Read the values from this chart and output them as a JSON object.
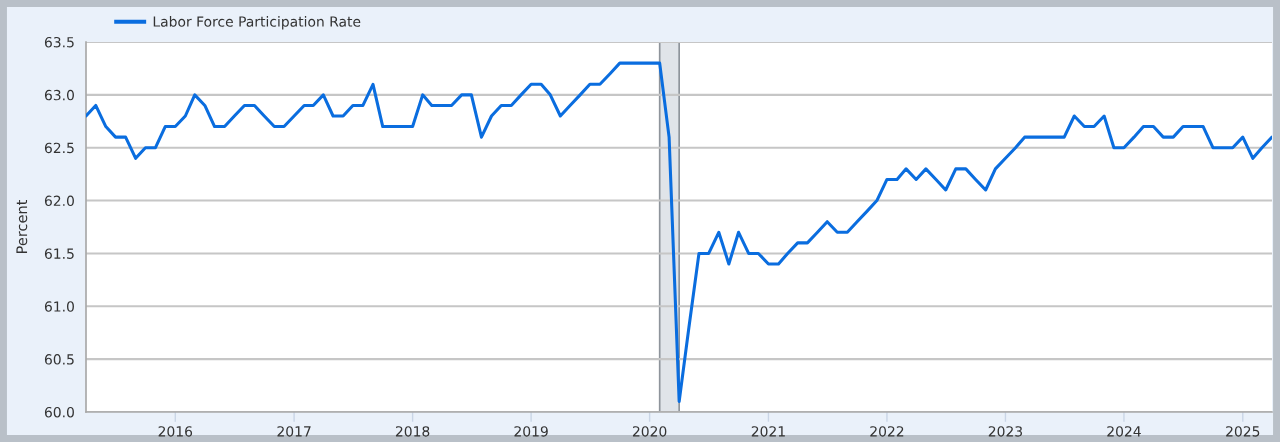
{
  "chart_data": {
    "type": "line",
    "ylabel": "Percent",
    "x": [
      "2015-04",
      "2015-05",
      "2015-06",
      "2015-07",
      "2015-08",
      "2015-09",
      "2015-10",
      "2015-11",
      "2015-12",
      "2016-01",
      "2016-02",
      "2016-03",
      "2016-04",
      "2016-05",
      "2016-06",
      "2016-07",
      "2016-08",
      "2016-09",
      "2016-10",
      "2016-11",
      "2016-12",
      "2017-01",
      "2017-02",
      "2017-03",
      "2017-04",
      "2017-05",
      "2017-06",
      "2017-07",
      "2017-08",
      "2017-09",
      "2017-10",
      "2017-11",
      "2017-12",
      "2018-01",
      "2018-02",
      "2018-03",
      "2018-04",
      "2018-05",
      "2018-06",
      "2018-07",
      "2018-08",
      "2018-09",
      "2018-10",
      "2018-11",
      "2018-12",
      "2019-01",
      "2019-02",
      "2019-03",
      "2019-04",
      "2019-05",
      "2019-06",
      "2019-07",
      "2019-08",
      "2019-09",
      "2019-10",
      "2019-11",
      "2019-12",
      "2020-01",
      "2020-02",
      "2020-03",
      "2020-04",
      "2020-05",
      "2020-06",
      "2020-07",
      "2020-08",
      "2020-09",
      "2020-10",
      "2020-11",
      "2020-12",
      "2021-01",
      "2021-02",
      "2021-03",
      "2021-04",
      "2021-05",
      "2021-06",
      "2021-07",
      "2021-08",
      "2021-09",
      "2021-10",
      "2021-11",
      "2021-12",
      "2022-01",
      "2022-02",
      "2022-03",
      "2022-04",
      "2022-05",
      "2022-06",
      "2022-07",
      "2022-08",
      "2022-09",
      "2022-10",
      "2022-11",
      "2022-12",
      "2023-01",
      "2023-02",
      "2023-03",
      "2023-04",
      "2023-05",
      "2023-06",
      "2023-07",
      "2023-08",
      "2023-09",
      "2023-10",
      "2023-11",
      "2023-12",
      "2024-01",
      "2024-02",
      "2024-03",
      "2024-04",
      "2024-05",
      "2024-06",
      "2024-07",
      "2024-08",
      "2024-09",
      "2024-10",
      "2024-11",
      "2024-12",
      "2025-01",
      "2025-02",
      "2025-03",
      "2025-04"
    ],
    "series": [
      {
        "name": "Labor Force Participation Rate",
        "color": "#0a6ddf",
        "values": [
          62.8,
          62.9,
          62.7,
          62.6,
          62.6,
          62.4,
          62.5,
          62.5,
          62.7,
          62.7,
          62.8,
          63.0,
          62.9,
          62.7,
          62.7,
          62.8,
          62.9,
          62.9,
          62.8,
          62.7,
          62.7,
          62.8,
          62.9,
          62.9,
          63.0,
          62.8,
          62.8,
          62.9,
          62.9,
          63.1,
          62.7,
          62.7,
          62.7,
          62.7,
          63.0,
          62.9,
          62.9,
          62.9,
          63.0,
          63.0,
          62.6,
          62.8,
          62.9,
          62.9,
          63.0,
          63.1,
          63.1,
          63.0,
          62.8,
          62.9,
          63.0,
          63.1,
          63.1,
          63.2,
          63.3,
          63.3,
          63.3,
          63.3,
          63.3,
          62.6,
          60.1,
          60.8,
          61.5,
          61.5,
          61.7,
          61.4,
          61.7,
          61.5,
          61.5,
          61.4,
          61.4,
          61.5,
          61.6,
          61.6,
          61.7,
          61.8,
          61.7,
          61.7,
          61.8,
          61.9,
          62.0,
          62.2,
          62.2,
          62.3,
          62.2,
          62.3,
          62.2,
          62.1,
          62.3,
          62.3,
          62.2,
          62.1,
          62.3,
          62.4,
          62.5,
          62.6,
          62.6,
          62.6,
          62.6,
          62.6,
          62.8,
          62.7,
          62.7,
          62.8,
          62.5,
          62.5,
          62.6,
          62.7,
          62.7,
          62.6,
          62.6,
          62.7,
          62.7,
          62.7,
          62.5,
          62.5,
          62.5,
          62.6,
          62.4,
          62.5,
          62.6
        ]
      }
    ],
    "xlim": [
      "2015-04",
      "2025-04"
    ],
    "xticks": [
      "2016",
      "2017",
      "2018",
      "2019",
      "2020",
      "2021",
      "2022",
      "2023",
      "2024",
      "2025"
    ],
    "ylim": [
      60,
      63.5
    ],
    "yticks": [
      {
        "value": 60,
        "label": "60.0"
      },
      60.5,
      {
        "value": 61,
        "label": "61.0"
      },
      61.5,
      {
        "value": 62,
        "label": "62.0"
      },
      62.5,
      {
        "value": 63,
        "label": "63.0"
      },
      63.5
    ],
    "bands": [
      {
        "axis": "x",
        "from": "2020-02",
        "to": "2020-04",
        "color": "#e0e4e9"
      }
    ],
    "grid": "y",
    "legend": "top left",
    "marker": "none",
    "line_style": "solid"
  }
}
